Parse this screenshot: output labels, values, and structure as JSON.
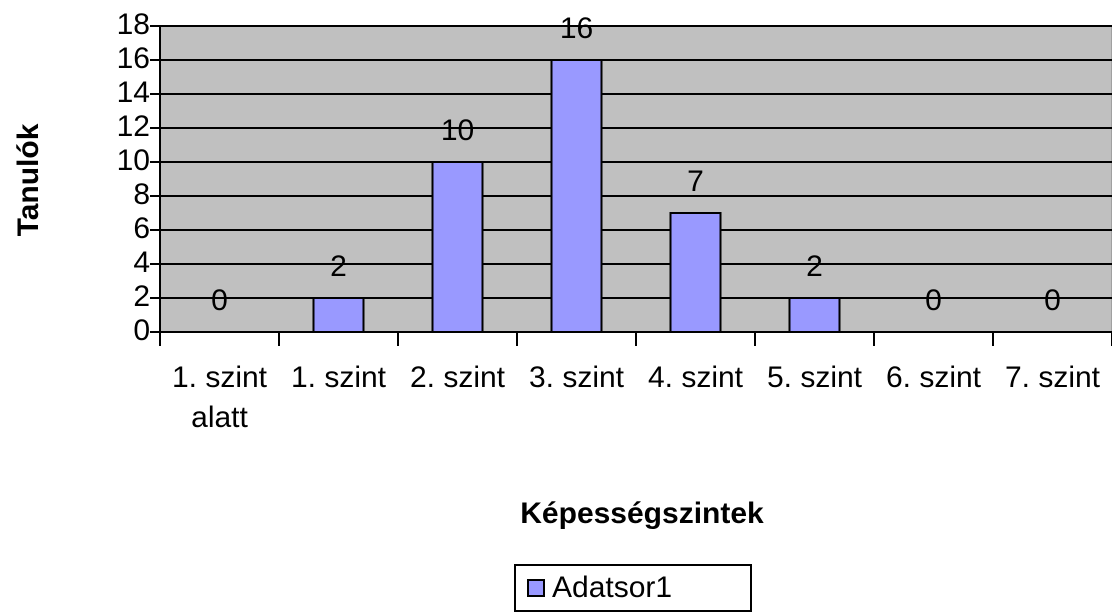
{
  "chart_data": {
    "type": "bar",
    "categories": [
      "1. szint alatt",
      "1. szint",
      "2. szint",
      "3. szint",
      "4. szint",
      "5. szint",
      "6. szint",
      "7. szint"
    ],
    "series": [
      {
        "name": "Adatsor1",
        "color": "#9999ff",
        "values": [
          0,
          2,
          10,
          16,
          7,
          2,
          0,
          0
        ]
      }
    ],
    "xlabel": "Képességszintek",
    "ylabel": "Tanulók",
    "ylim": [
      0,
      18
    ],
    "yticks": [
      0,
      2,
      4,
      6,
      8,
      10,
      12,
      14,
      16,
      18
    ],
    "grid": true,
    "background": "#c0c0c0",
    "legend": "bottom"
  }
}
